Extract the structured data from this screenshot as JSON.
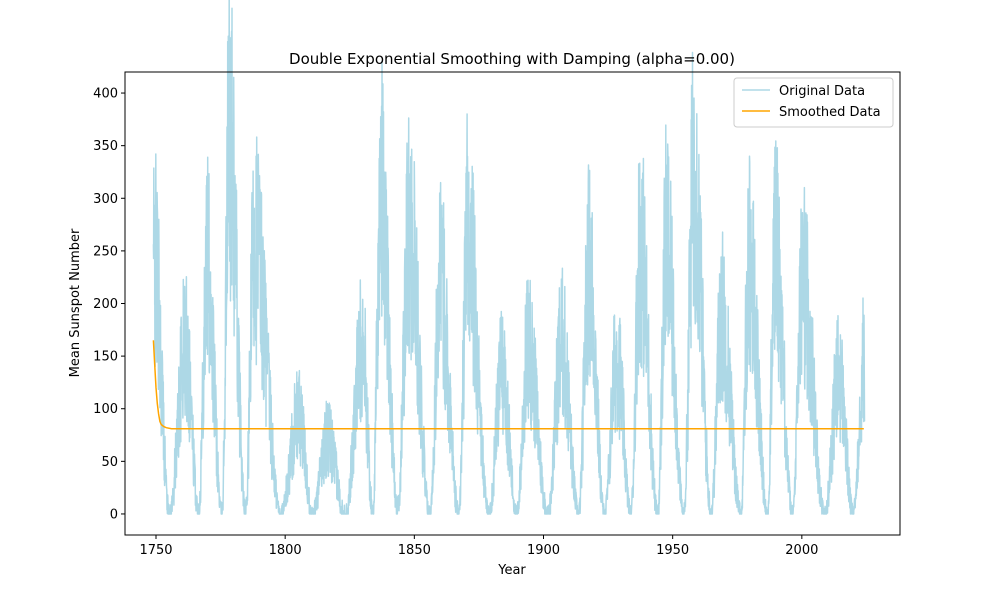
{
  "chart_data": {
    "type": "line",
    "title": "Double Exponential Smoothing with Damping (alpha=0.00)",
    "xlabel": "Year",
    "ylabel": "Mean Sunspot Number",
    "xlim": [
      1738,
      2038
    ],
    "ylim": [
      -20,
      420
    ],
    "xticks": [
      1750,
      1800,
      1850,
      1900,
      1950,
      2000
    ],
    "yticks": [
      0,
      50,
      100,
      150,
      200,
      250,
      300,
      350,
      400
    ],
    "grid": false,
    "legend": "upper-right",
    "colors": {
      "original": "#add8e6",
      "smoothed": "#ffa500"
    },
    "series": [
      {
        "name": "Original Data",
        "cycle_peaks": [
          {
            "year": 1749.5,
            "value": 265
          },
          {
            "year": 1761.5,
            "value": 178
          },
          {
            "year": 1769.7,
            "value": 265
          },
          {
            "year": 1778.4,
            "value": 399
          },
          {
            "year": 1788.1,
            "value": 291
          },
          {
            "year": 1805.2,
            "value": 103
          },
          {
            "year": 1816.4,
            "value": 80
          },
          {
            "year": 1829.9,
            "value": 178
          },
          {
            "year": 1837.2,
            "value": 344
          },
          {
            "year": 1848.1,
            "value": 301
          },
          {
            "year": 1860.1,
            "value": 245
          },
          {
            "year": 1870.6,
            "value": 293
          },
          {
            "year": 1883.9,
            "value": 154
          },
          {
            "year": 1894.1,
            "value": 175
          },
          {
            "year": 1907.0,
            "value": 180
          },
          {
            "year": 1917.6,
            "value": 258
          },
          {
            "year": 1928.4,
            "value": 165
          },
          {
            "year": 1937.4,
            "value": 285
          },
          {
            "year": 1947.5,
            "value": 285
          },
          {
            "year": 1958.2,
            "value": 360
          },
          {
            "year": 1968.9,
            "value": 210
          },
          {
            "year": 1979.5,
            "value": 268
          },
          {
            "year": 1989.6,
            "value": 285
          },
          {
            "year": 2000.3,
            "value": 245
          },
          {
            "year": 2014.3,
            "value": 146
          },
          {
            "year": 2024.0,
            "value": 161
          }
        ],
        "cycle_minima": [
          {
            "year": 1755.2,
            "value": 0
          },
          {
            "year": 1766.5,
            "value": 2
          },
          {
            "year": 1775.5,
            "value": 1
          },
          {
            "year": 1784.7,
            "value": 1
          },
          {
            "year": 1798.3,
            "value": 0
          },
          {
            "year": 1810.6,
            "value": 0
          },
          {
            "year": 1823.3,
            "value": 0
          },
          {
            "year": 1833.9,
            "value": 3
          },
          {
            "year": 1843.5,
            "value": 6
          },
          {
            "year": 1856.0,
            "value": 0
          },
          {
            "year": 1867.2,
            "value": 0
          },
          {
            "year": 1878.9,
            "value": 0
          },
          {
            "year": 1889.6,
            "value": 0
          },
          {
            "year": 1901.7,
            "value": 0
          },
          {
            "year": 1913.6,
            "value": 0
          },
          {
            "year": 1923.6,
            "value": 0
          },
          {
            "year": 1933.8,
            "value": 0
          },
          {
            "year": 1944.2,
            "value": 0
          },
          {
            "year": 1954.3,
            "value": 0
          },
          {
            "year": 1964.9,
            "value": 2
          },
          {
            "year": 1976.5,
            "value": 0
          },
          {
            "year": 1986.8,
            "value": 0
          },
          {
            "year": 1996.4,
            "value": 0
          },
          {
            "year": 2008.9,
            "value": 0
          },
          {
            "year": 2019.9,
            "value": 0
          }
        ]
      },
      {
        "name": "Smoothed Data",
        "points": [
          {
            "year": 1749.0,
            "value": 165
          },
          {
            "year": 1749.5,
            "value": 142
          },
          {
            "year": 1750.0,
            "value": 120
          },
          {
            "year": 1750.5,
            "value": 105
          },
          {
            "year": 1751.0,
            "value": 95
          },
          {
            "year": 1751.5,
            "value": 88
          },
          {
            "year": 1752.0,
            "value": 85
          },
          {
            "year": 1753.0,
            "value": 83
          },
          {
            "year": 1754.0,
            "value": 82
          },
          {
            "year": 1756.0,
            "value": 81
          },
          {
            "year": 2024.0,
            "value": 81
          }
        ]
      }
    ]
  }
}
